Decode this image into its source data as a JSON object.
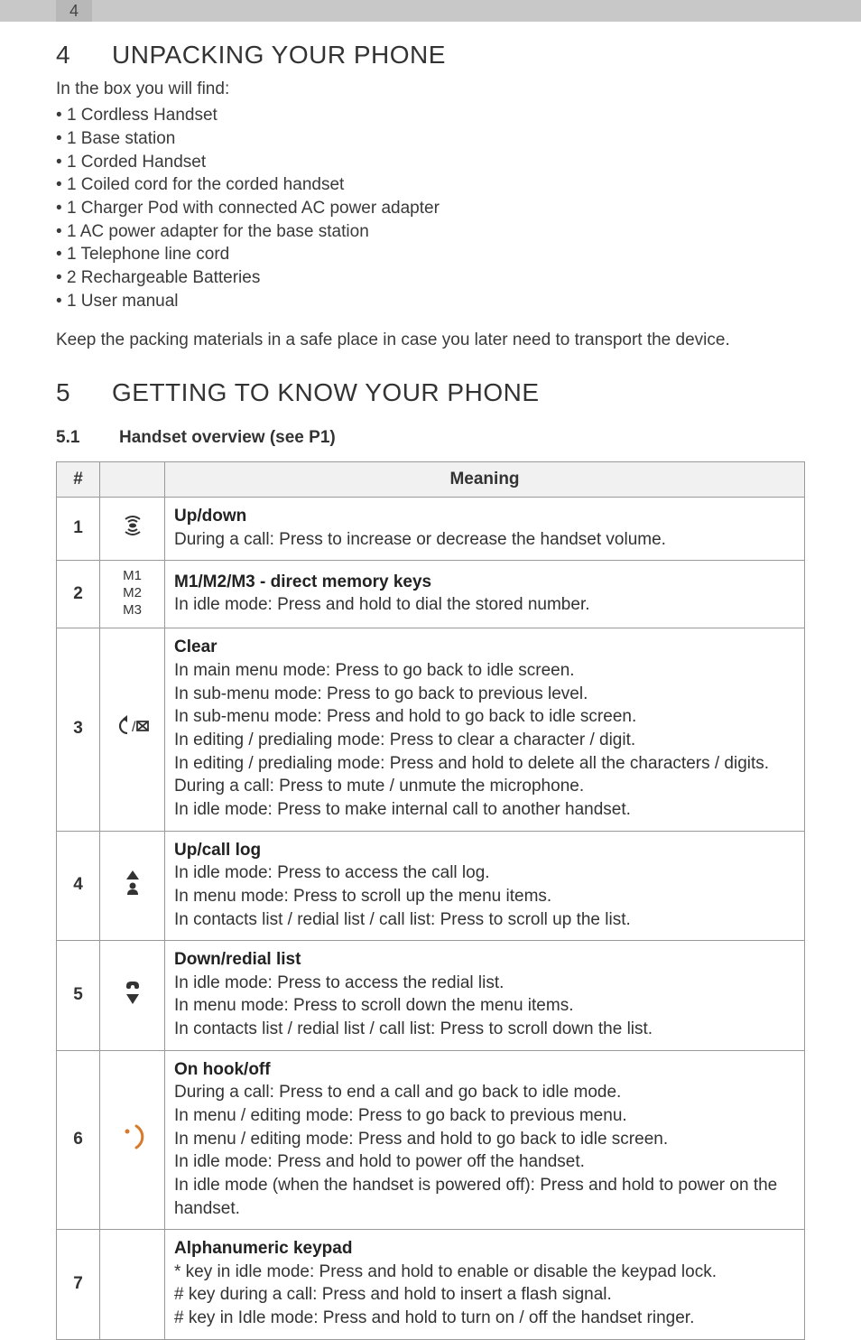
{
  "page_number_tab": "4",
  "section4": {
    "num": "4",
    "title": "UNPACKING YOUR PHONE",
    "intro": "In the box you will find:",
    "items": [
      "1 Cordless Handset",
      "1 Base station",
      "1 Corded Handset",
      "1 Coiled cord for the corded handset",
      "1 Charger Pod with connected AC power adapter",
      "1 AC power adapter for the base station",
      "1 Telephone line cord",
      "2 Rechargeable Batteries",
      "1 User manual"
    ],
    "note": "Keep the packing materials in a safe place in case you later need to transport the device."
  },
  "section5": {
    "num": "5",
    "title": "GETTING TO KNOW YOUR PHONE",
    "sub_num": "5.1",
    "sub_title": "Handset overview (see P1)"
  },
  "table": {
    "headers": {
      "num": "#",
      "icon": "",
      "meaning": "Meaning"
    },
    "rows": [
      {
        "n": "1",
        "icon_label": "",
        "title": "Up/down",
        "body": "During a call: Press to increase or decrease the handset volume."
      },
      {
        "n": "2",
        "icon_label": "M1\nM2\nM3",
        "title": "M1/M2/M3 - direct memory keys",
        "body": "In idle mode: Press and hold to dial the stored number."
      },
      {
        "n": "3",
        "icon_label": "",
        "title": "Clear",
        "body": "In main menu mode: Press to go back to idle screen.\nIn sub-menu mode: Press to go back to previous level.\nIn sub-menu mode: Press and hold to go back to idle screen.\nIn editing / predialing mode: Press to clear a character / digit.\nIn editing / predialing mode: Press and hold to delete all the characters / digits.\nDuring a call: Press to mute / unmute the microphone.\nIn idle mode: Press to make internal call to another handset."
      },
      {
        "n": "4",
        "icon_label": "",
        "title": "Up/call log",
        "body": "In idle mode: Press to access the call log.\nIn menu mode: Press to scroll up the menu items.\nIn contacts list / redial list / call list: Press to scroll up the list."
      },
      {
        "n": "5",
        "icon_label": "",
        "title": "Down/redial list",
        "body": "In idle mode: Press to access the redial list.\nIn menu mode: Press to scroll down the menu items.\nIn contacts list / redial list / call list: Press to scroll down the list."
      },
      {
        "n": "6",
        "icon_label": "",
        "title": "On hook/off",
        "body": "During a call: Press to end a call and go back to idle mode.\nIn menu / editing mode: Press to go back to previous menu.\nIn menu / editing mode: Press and hold to go back to idle screen.\nIn idle mode: Press and hold to power off the handset.\nIn idle mode (when the handset is powered off): Press and hold to power on the handset."
      },
      {
        "n": "7",
        "icon_label": "",
        "title": "Alphanumeric keypad",
        "body": "* key in idle mode: Press and hold to enable or disable the keypad lock.\n# key during a call: Press and hold to insert a flash signal.\n# key in Idle mode: Press and hold to turn on / off the handset ringer."
      }
    ]
  },
  "colors": {
    "accent_orange": "#d97a2a",
    "text": "#333333",
    "header_bar": "#c8c8c8",
    "tab_bg": "#b8b8b8",
    "table_border": "#999999",
    "th_bg": "#f1f1f1"
  }
}
